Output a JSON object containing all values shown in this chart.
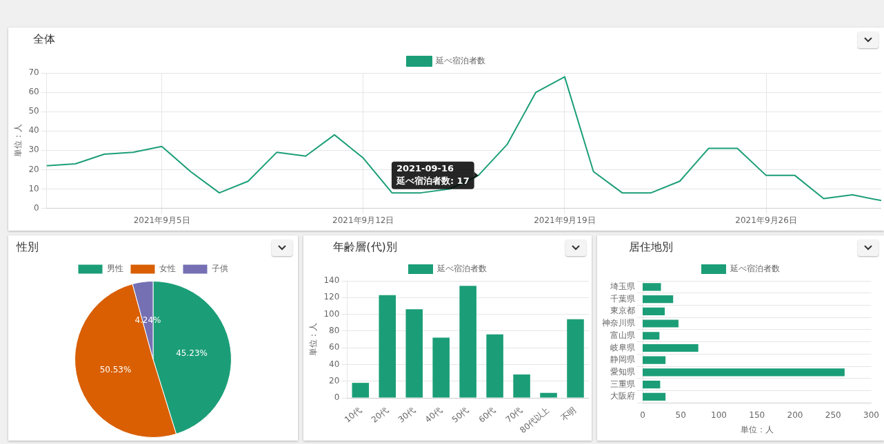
{
  "chart_data": [
    {
      "type": "line",
      "title": "全体",
      "ylabel": "単位：人",
      "legend": "top",
      "grid": true,
      "marker": "none",
      "line_style": "solid",
      "x": [
        "2021-09-01",
        "2021-09-02",
        "2021-09-03",
        "2021-09-04",
        "2021-09-05",
        "2021-09-06",
        "2021-09-07",
        "2021-09-08",
        "2021-09-09",
        "2021-09-10",
        "2021-09-11",
        "2021-09-12",
        "2021-09-13",
        "2021-09-14",
        "2021-09-15",
        "2021-09-16",
        "2021-09-17",
        "2021-09-18",
        "2021-09-19",
        "2021-09-20",
        "2021-09-21",
        "2021-09-22",
        "2021-09-23",
        "2021-09-24",
        "2021-09-25",
        "2021-09-26",
        "2021-09-27",
        "2021-09-28",
        "2021-09-29",
        "2021-09-30"
      ],
      "xlim": [
        "2021-09-01",
        "2021-09-30"
      ],
      "xticks": [
        {
          "value": "2021-09-05",
          "label": "2021年9月5日"
        },
        {
          "value": "2021-09-12",
          "label": "2021年9月12日"
        },
        {
          "value": "2021-09-19",
          "label": "2021年9月19日"
        },
        {
          "value": "2021-09-26",
          "label": "2021年9月26日"
        }
      ],
      "ylim": [
        0,
        70
      ],
      "yticks": [
        0,
        10,
        20,
        30,
        40,
        50,
        60,
        70
      ],
      "series": [
        {
          "name": "延べ宿泊者数",
          "color": "#1b9e77",
          "values": [
            22,
            23,
            28,
            29,
            32,
            19,
            8,
            14,
            29,
            27,
            38,
            26,
            8,
            8,
            10,
            17,
            33,
            60,
            68,
            19,
            8,
            8,
            14,
            31,
            31,
            17,
            17,
            5,
            7,
            4
          ]
        }
      ],
      "annotations": [
        {
          "text": "2021-09-16\n延べ宿泊者数: 17",
          "x": "2021-09-16",
          "y": 17
        }
      ]
    },
    {
      "type": "pie",
      "title": "性別",
      "legend": "top",
      "categories": [
        "男性",
        "女性",
        "子供"
      ],
      "values": [
        45.23,
        50.53,
        4.24
      ],
      "colors": [
        "#1b9e77",
        "#d95f02",
        "#7570b3"
      ],
      "value_labels": [
        "45.23%",
        "50.53%",
        "4.24%"
      ]
    },
    {
      "type": "bar",
      "title": "年齢層(代)別",
      "ylabel": "単位：人",
      "legend": "top",
      "grid": "y",
      "categories": [
        "10代",
        "20代",
        "30代",
        "40代",
        "50代",
        "60代",
        "70代",
        "80代以上",
        "不明"
      ],
      "ylim": [
        0,
        140
      ],
      "yticks": [
        0,
        20,
        40,
        60,
        80,
        100,
        120,
        140
      ],
      "series": [
        {
          "name": "延べ宿泊者数",
          "color": "#1b9e77",
          "values": [
            18,
            123,
            106,
            72,
            134,
            76,
            28,
            6,
            94
          ]
        }
      ]
    },
    {
      "type": "bar",
      "orientation": "horizontal",
      "title": "居住地別",
      "xlabel": "単位：人",
      "legend": "top",
      "grid": "y",
      "categories": [
        "埼玉県",
        "千葉県",
        "東京都",
        "神奈川県",
        "富山県",
        "岐阜県",
        "静岡県",
        "愛知県",
        "三重県",
        "大阪府"
      ],
      "xlim": [
        0,
        300
      ],
      "xticks": [
        0,
        50,
        100,
        150,
        200,
        250,
        300
      ],
      "series": [
        {
          "name": "延べ宿泊者数",
          "color": "#1b9e77",
          "values": [
            24,
            40,
            29,
            47,
            22,
            73,
            30,
            265,
            23,
            30
          ]
        }
      ]
    }
  ]
}
